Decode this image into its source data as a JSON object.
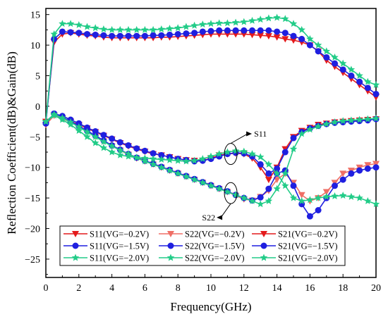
{
  "chart_data": {
    "type": "line",
    "xlabel": "Frequency(GHz)",
    "ylabel": "Reflection Coefficient(dB)&Gain(dB)",
    "xlim": [
      0,
      20
    ],
    "ylim": [
      -28,
      16
    ],
    "xticks": [
      0,
      2,
      4,
      6,
      8,
      10,
      12,
      14,
      16,
      18,
      20
    ],
    "yticks": [
      15,
      10,
      5,
      0,
      -5,
      -10,
      -15,
      -20,
      -25
    ],
    "x": [
      0,
      0.5,
      1,
      1.5,
      2,
      2.5,
      3,
      3.5,
      4,
      4.5,
      5,
      5.5,
      6,
      6.5,
      7,
      7.5,
      8,
      8.5,
      9,
      9.5,
      10,
      10.5,
      11,
      11.5,
      12,
      12.5,
      13,
      13.5,
      14,
      14.5,
      15,
      15.5,
      16,
      16.5,
      17,
      17.5,
      18,
      18.5,
      19,
      19.5,
      20
    ],
    "grid": false,
    "legend_position": "bottom-inside",
    "annotations": [
      {
        "text": "S11"
      },
      {
        "text": "S22"
      }
    ],
    "series": [
      {
        "name": "S11(VG=−0.2V)",
        "color": "#e41a1c",
        "marker": "triangle-down",
        "values": [
          -3.0,
          -1.5,
          -2.0,
          -2.5,
          -3.0,
          -3.6,
          -4.2,
          -4.8,
          -5.4,
          -6.0,
          -6.5,
          -7.0,
          -7.4,
          -7.8,
          -8.0,
          -8.3,
          -8.6,
          -8.8,
          -8.9,
          -8.9,
          -8.5,
          -8.0,
          -7.8,
          -7.7,
          -7.8,
          -8.5,
          -10.0,
          -12.0,
          -10.0,
          -7.0,
          -5.0,
          -4.0,
          -3.5,
          -3.0,
          -2.8,
          -2.6,
          -2.5,
          -2.4,
          -2.3,
          -2.2,
          -2.1
        ]
      },
      {
        "name": "S22(VG=−0.2V)",
        "color": "#ef6f66",
        "marker": "triangle-down",
        "values": [
          -3.0,
          -1.5,
          -2.0,
          -2.6,
          -3.3,
          -4.1,
          -4.9,
          -5.7,
          -6.5,
          -7.2,
          -7.9,
          -8.5,
          -9.0,
          -9.5,
          -10.0,
          -10.5,
          -11.0,
          -11.5,
          -12.0,
          -12.5,
          -13.0,
          -13.5,
          -14.0,
          -14.6,
          -15.2,
          -15.4,
          -14.8,
          -13.8,
          -12.0,
          -11.0,
          -12.5,
          -14.5,
          -15.5,
          -15.0,
          -14.0,
          -12.5,
          -11.0,
          -10.5,
          -10.0,
          -9.6,
          -9.4
        ]
      },
      {
        "name": "S21(VG=−0.2V)",
        "color": "#e41a1c",
        "marker": "triangle-down",
        "values": [
          -2.5,
          10.5,
          11.8,
          12.0,
          11.8,
          11.6,
          11.5,
          11.3,
          11.2,
          11.2,
          11.2,
          11.2,
          11.2,
          11.2,
          11.3,
          11.3,
          11.4,
          11.5,
          11.6,
          11.7,
          11.8,
          11.8,
          11.8,
          11.8,
          11.8,
          11.7,
          11.6,
          11.5,
          11.3,
          11.0,
          10.8,
          10.5,
          10.0,
          9.0,
          7.5,
          6.5,
          5.5,
          4.5,
          3.5,
          2.5,
          1.5
        ]
      },
      {
        "name": "S11(VG=−1.5V)",
        "color": "#1f1fe0",
        "marker": "circle",
        "values": [
          -2.8,
          -1.2,
          -1.6,
          -2.2,
          -2.8,
          -3.5,
          -4.1,
          -4.7,
          -5.3,
          -5.9,
          -6.4,
          -6.9,
          -7.3,
          -7.7,
          -8.0,
          -8.3,
          -8.6,
          -8.8,
          -9.0,
          -8.9,
          -8.6,
          -8.2,
          -7.8,
          -7.6,
          -7.7,
          -8.2,
          -9.5,
          -11.0,
          -10.2,
          -7.5,
          -5.2,
          -4.2,
          -3.6,
          -3.2,
          -2.9,
          -2.7,
          -2.6,
          -2.5,
          -2.4,
          -2.3,
          -2.1
        ]
      },
      {
        "name": "S22(VG=−1.5V)",
        "color": "#1f1fe0",
        "marker": "circle",
        "values": [
          -2.8,
          -1.2,
          -1.8,
          -2.5,
          -3.2,
          -4.0,
          -4.8,
          -5.6,
          -6.4,
          -7.1,
          -7.8,
          -8.4,
          -8.9,
          -9.4,
          -9.9,
          -10.4,
          -10.9,
          -11.4,
          -11.9,
          -12.4,
          -12.9,
          -13.4,
          -13.9,
          -14.5,
          -15.0,
          -15.4,
          -14.9,
          -13.5,
          -11.0,
          -10.5,
          -13.0,
          -16.0,
          -18.0,
          -17.0,
          -15.0,
          -13.0,
          -12.0,
          -11.0,
          -10.5,
          -10.2,
          -10.0
        ]
      },
      {
        "name": "S21(VG=−1.5V)",
        "color": "#1f1fe0",
        "marker": "circle",
        "values": [
          -2.8,
          11.0,
          12.2,
          12.1,
          12.0,
          11.8,
          11.7,
          11.6,
          11.5,
          11.5,
          11.5,
          11.5,
          11.5,
          11.6,
          11.6,
          11.7,
          11.8,
          11.9,
          12.0,
          12.2,
          12.3,
          12.4,
          12.4,
          12.4,
          12.4,
          12.4,
          12.4,
          12.4,
          12.2,
          12.0,
          11.5,
          11.0,
          10.0,
          9.0,
          8.0,
          7.0,
          6.0,
          5.0,
          4.0,
          3.0,
          2.0
        ]
      },
      {
        "name": "S11(VG=−2.0V)",
        "color": "#22cc88",
        "marker": "star",
        "values": [
          -2.5,
          -1.5,
          -2.2,
          -3.0,
          -4.0,
          -5.0,
          -6.0,
          -6.8,
          -7.5,
          -8.0,
          -8.2,
          -8.4,
          -8.5,
          -8.6,
          -8.7,
          -8.8,
          -8.9,
          -9.0,
          -8.9,
          -8.6,
          -8.2,
          -7.8,
          -7.5,
          -7.3,
          -7.4,
          -7.8,
          -8.3,
          -9.5,
          -11.0,
          -13.0,
          -15.0,
          -15.5,
          -15.3,
          -15.0,
          -14.8,
          -14.7,
          -14.6,
          -14.8,
          -15.0,
          -15.5,
          -16.0
        ]
      },
      {
        "name": "S22(VG=−2.0V)",
        "color": "#22cc88",
        "marker": "star",
        "values": [
          -2.5,
          -1.3,
          -1.9,
          -2.6,
          -3.4,
          -4.2,
          -5.0,
          -5.8,
          -6.5,
          -7.2,
          -7.8,
          -8.4,
          -9.0,
          -9.5,
          -10.0,
          -10.5,
          -11.0,
          -11.5,
          -12.0,
          -12.5,
          -13.0,
          -13.5,
          -14.0,
          -14.5,
          -15.0,
          -15.5,
          -16.0,
          -15.5,
          -13.5,
          -11.0,
          -7.0,
          -4.5,
          -3.8,
          -3.3,
          -2.9,
          -2.6,
          -2.4,
          -2.3,
          -2.2,
          -2.1,
          -2.0
        ]
      },
      {
        "name": "S21(VG=−2.0V)",
        "color": "#22cc88",
        "marker": "star",
        "values": [
          -2.5,
          11.8,
          13.5,
          13.5,
          13.3,
          13.0,
          12.8,
          12.6,
          12.5,
          12.5,
          12.5,
          12.5,
          12.5,
          12.5,
          12.6,
          12.7,
          12.8,
          13.0,
          13.2,
          13.4,
          13.5,
          13.6,
          13.6,
          13.7,
          13.8,
          14.0,
          14.2,
          14.4,
          14.5,
          14.3,
          13.5,
          12.5,
          11.0,
          10.0,
          9.0,
          8.0,
          7.0,
          6.0,
          5.0,
          4.0,
          3.5
        ]
      }
    ]
  }
}
